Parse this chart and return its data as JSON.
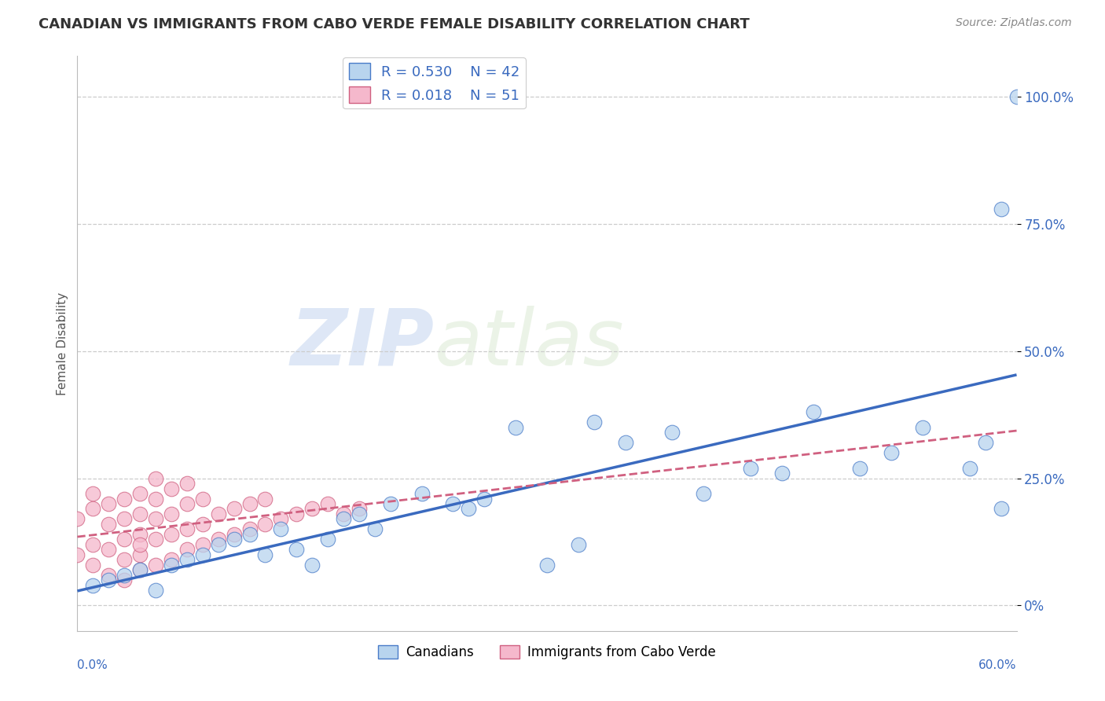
{
  "title": "CANADIAN VS IMMIGRANTS FROM CABO VERDE FEMALE DISABILITY CORRELATION CHART",
  "source": "Source: ZipAtlas.com",
  "ylabel": "Female Disability",
  "xlim": [
    0.0,
    0.6
  ],
  "ylim": [
    -0.05,
    1.08
  ],
  "ytick_values": [
    0.0,
    0.25,
    0.5,
    0.75,
    1.0
  ],
  "ytick_labels": [
    "0%",
    "25.0%",
    "50.0%",
    "75.0%",
    "100.0%"
  ],
  "canadian_color": "#b8d4ee",
  "cabo_verde_color": "#f5b8cc",
  "canadian_edge": "#4a7cc9",
  "cabo_verde_edge": "#d06080",
  "trend_blue": "#3a6abf",
  "trend_pink": "#d06080",
  "canadian_R": 0.53,
  "canadian_N": 42,
  "cabo_verde_R": 0.018,
  "cabo_verde_N": 51,
  "canadians_x": [
    0.01,
    0.02,
    0.03,
    0.04,
    0.05,
    0.06,
    0.07,
    0.08,
    0.09,
    0.1,
    0.11,
    0.12,
    0.13,
    0.14,
    0.15,
    0.16,
    0.17,
    0.18,
    0.19,
    0.2,
    0.22,
    0.24,
    0.25,
    0.26,
    0.28,
    0.3,
    0.32,
    0.33,
    0.35,
    0.38,
    0.4,
    0.43,
    0.45,
    0.47,
    0.5,
    0.52,
    0.54,
    0.57,
    0.58,
    0.59,
    0.59,
    0.6
  ],
  "canadians_y": [
    0.04,
    0.05,
    0.06,
    0.07,
    0.03,
    0.08,
    0.09,
    0.1,
    0.12,
    0.13,
    0.14,
    0.1,
    0.15,
    0.11,
    0.08,
    0.13,
    0.17,
    0.18,
    0.15,
    0.2,
    0.22,
    0.2,
    0.19,
    0.21,
    0.35,
    0.08,
    0.12,
    0.36,
    0.32,
    0.34,
    0.22,
    0.27,
    0.26,
    0.38,
    0.27,
    0.3,
    0.35,
    0.27,
    0.32,
    0.19,
    0.78,
    1.0
  ],
  "cabo_verde_x": [
    0.0,
    0.0,
    0.01,
    0.01,
    0.01,
    0.01,
    0.02,
    0.02,
    0.02,
    0.02,
    0.03,
    0.03,
    0.03,
    0.03,
    0.03,
    0.04,
    0.04,
    0.04,
    0.04,
    0.04,
    0.04,
    0.05,
    0.05,
    0.05,
    0.05,
    0.05,
    0.06,
    0.06,
    0.06,
    0.06,
    0.07,
    0.07,
    0.07,
    0.07,
    0.08,
    0.08,
    0.08,
    0.09,
    0.09,
    0.1,
    0.1,
    0.11,
    0.11,
    0.12,
    0.12,
    0.13,
    0.14,
    0.15,
    0.16,
    0.17,
    0.18
  ],
  "cabo_verde_y": [
    0.1,
    0.17,
    0.08,
    0.12,
    0.19,
    0.22,
    0.06,
    0.11,
    0.16,
    0.2,
    0.09,
    0.13,
    0.17,
    0.21,
    0.05,
    0.1,
    0.14,
    0.18,
    0.07,
    0.12,
    0.22,
    0.08,
    0.13,
    0.17,
    0.21,
    0.25,
    0.09,
    0.14,
    0.18,
    0.23,
    0.11,
    0.15,
    0.2,
    0.24,
    0.12,
    0.16,
    0.21,
    0.13,
    0.18,
    0.14,
    0.19,
    0.15,
    0.2,
    0.16,
    0.21,
    0.17,
    0.18,
    0.19,
    0.2,
    0.18,
    0.19
  ],
  "watermark_zip": "ZIP",
  "watermark_atlas": "atlas"
}
